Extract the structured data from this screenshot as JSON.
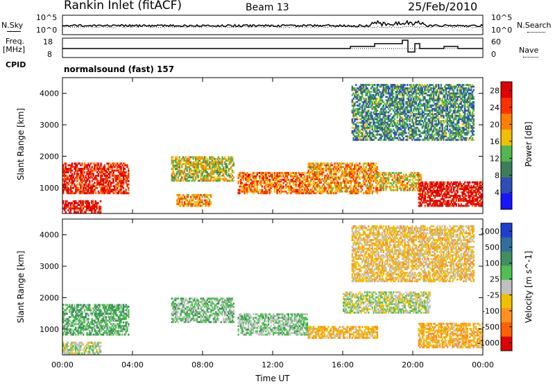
{
  "header": {
    "station": "Rankin Inlet (fitACF)",
    "beam": "Beam 13",
    "date": "25/Feb/2010"
  },
  "sky_panel": {
    "left_label": "N.Sky",
    "right_label": "N.Search",
    "top_tick": "10^5",
    "bottom_tick": "10^0"
  },
  "freq_panel": {
    "left_label_line1": "Freq.",
    "left_label_line2": "[MHz]",
    "left_ticks": [
      "18",
      "8"
    ],
    "right_label": "Nave",
    "right_ticks": [
      "60",
      "0"
    ]
  },
  "cpid": {
    "label": "CPID",
    "value": "normalsound (fast) 157"
  },
  "chart_data": [
    {
      "type": "heatmap",
      "title": "",
      "xlabel": "Time UT",
      "ylabel": "Slant Range [km]",
      "x_ticks": [
        "00:00",
        "04:00",
        "08:00",
        "12:00",
        "16:00",
        "20:00",
        "00:00"
      ],
      "y_ticks": [
        "1000",
        "2000",
        "3000",
        "4000"
      ],
      "ylim": [
        180,
        4500
      ],
      "colorbar_label": "Power [dB]",
      "colorbar_ticks": [
        "4",
        "8",
        "12",
        "16",
        "20",
        "24",
        "28"
      ],
      "colorbar_range": [
        0,
        30
      ],
      "colors": [
        "#1515ff",
        "#2f4fb8",
        "#3a7f5a",
        "#4fb84f",
        "#f0c000",
        "#ff8000",
        "#ff3000",
        "#e00000"
      ],
      "echo_regions": [
        {
          "t": [
            0.0,
            3.8
          ],
          "range_km": [
            800,
            1800
          ],
          "power_db": 26
        },
        {
          "t": [
            0.0,
            2.2
          ],
          "range_km": [
            200,
            600
          ],
          "power_db": 28
        },
        {
          "t": [
            6.2,
            9.8
          ],
          "range_km": [
            1200,
            2000
          ],
          "power_db": 16
        },
        {
          "t": [
            6.5,
            8.5
          ],
          "range_km": [
            400,
            800
          ],
          "power_db": 20
        },
        {
          "t": [
            10.0,
            14.0
          ],
          "range_km": [
            800,
            1500
          ],
          "power_db": 22
        },
        {
          "t": [
            14.0,
            18.0
          ],
          "range_km": [
            800,
            1800
          ],
          "power_db": 20
        },
        {
          "t": [
            18.0,
            20.5
          ],
          "range_km": [
            900,
            1500
          ],
          "power_db": 18
        },
        {
          "t": [
            20.3,
            24.0
          ],
          "range_km": [
            400,
            1200
          ],
          "power_db": 28
        },
        {
          "t": [
            16.5,
            23.5
          ],
          "range_km": [
            2500,
            4300
          ],
          "power_db": 10
        }
      ]
    },
    {
      "type": "heatmap",
      "title": "",
      "xlabel": "Time UT",
      "ylabel": "Slant Range [km]",
      "x_ticks": [
        "00:00",
        "04:00",
        "08:00",
        "12:00",
        "16:00",
        "20:00",
        "00:00"
      ],
      "y_ticks": [
        "1000",
        "2000",
        "3000",
        "4000"
      ],
      "ylim": [
        180,
        4500
      ],
      "colorbar_label": "Velocity [m s^-1]",
      "colorbar_ticks": [
        "1000",
        "500",
        "100",
        "25",
        "-25",
        "-100",
        "-500",
        "-1000"
      ],
      "colorbar_range": [
        -1000,
        1000
      ],
      "colors": [
        "#1c3fd0",
        "#2f6fa0",
        "#3f8f5f",
        "#4fc04f",
        "#c0c0c0",
        "#f0c000",
        "#ff9020",
        "#ff6000",
        "#e00000"
      ],
      "echo_regions": [
        {
          "t": [
            0.0,
            3.8
          ],
          "range_km": [
            800,
            1800
          ],
          "velocity": 300
        },
        {
          "t": [
            0.0,
            2.2
          ],
          "range_km": [
            200,
            600
          ],
          "velocity": 0
        },
        {
          "t": [
            6.2,
            9.8
          ],
          "range_km": [
            1200,
            2000
          ],
          "velocity": 200
        },
        {
          "t": [
            10.0,
            14.0
          ],
          "range_km": [
            800,
            1500
          ],
          "velocity": 150
        },
        {
          "t": [
            14.0,
            18.0
          ],
          "range_km": [
            700,
            1100
          ],
          "velocity": -300
        },
        {
          "t": [
            16.0,
            21.0
          ],
          "range_km": [
            1500,
            2200
          ],
          "velocity": 0
        },
        {
          "t": [
            20.3,
            24.0
          ],
          "range_km": [
            400,
            1200
          ],
          "velocity": -300
        },
        {
          "t": [
            16.5,
            23.5
          ],
          "range_km": [
            2500,
            4300
          ],
          "velocity": -200
        }
      ]
    }
  ]
}
